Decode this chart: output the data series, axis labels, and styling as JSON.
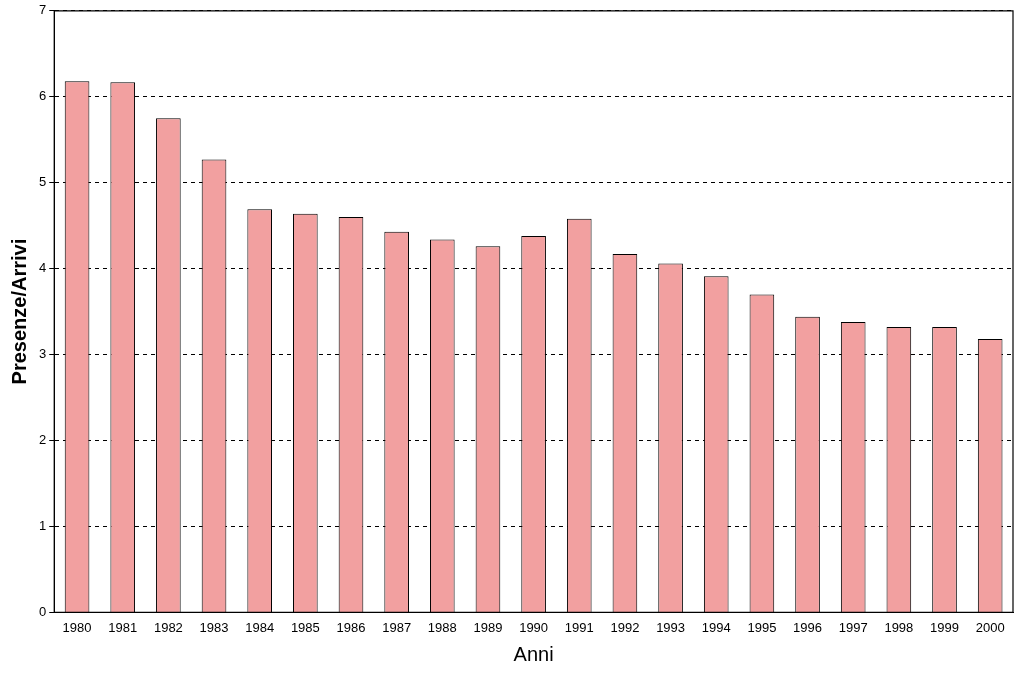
{
  "chart_data": {
    "type": "bar",
    "xlabel": "Anni",
    "ylabel": "Presenze/Arrivi",
    "categories": [
      "1980",
      "1981",
      "1982",
      "1983",
      "1984",
      "1985",
      "1986",
      "1987",
      "1988",
      "1989",
      "1990",
      "1991",
      "1992",
      "1993",
      "1994",
      "1995",
      "1996",
      "1997",
      "1998",
      "1999",
      "2000"
    ],
    "values": [
      6.18,
      6.17,
      5.75,
      5.27,
      4.69,
      4.64,
      4.6,
      4.43,
      4.34,
      4.26,
      4.38,
      4.58,
      4.17,
      4.06,
      3.91,
      3.7,
      3.44,
      3.38,
      3.32,
      3.32,
      3.18
    ],
    "color": "#f2a0a0",
    "ylim": [
      0,
      7
    ],
    "yticks": [
      0,
      1,
      2,
      3,
      4,
      5,
      6,
      7
    ],
    "grid": "y",
    "legend": false
  }
}
